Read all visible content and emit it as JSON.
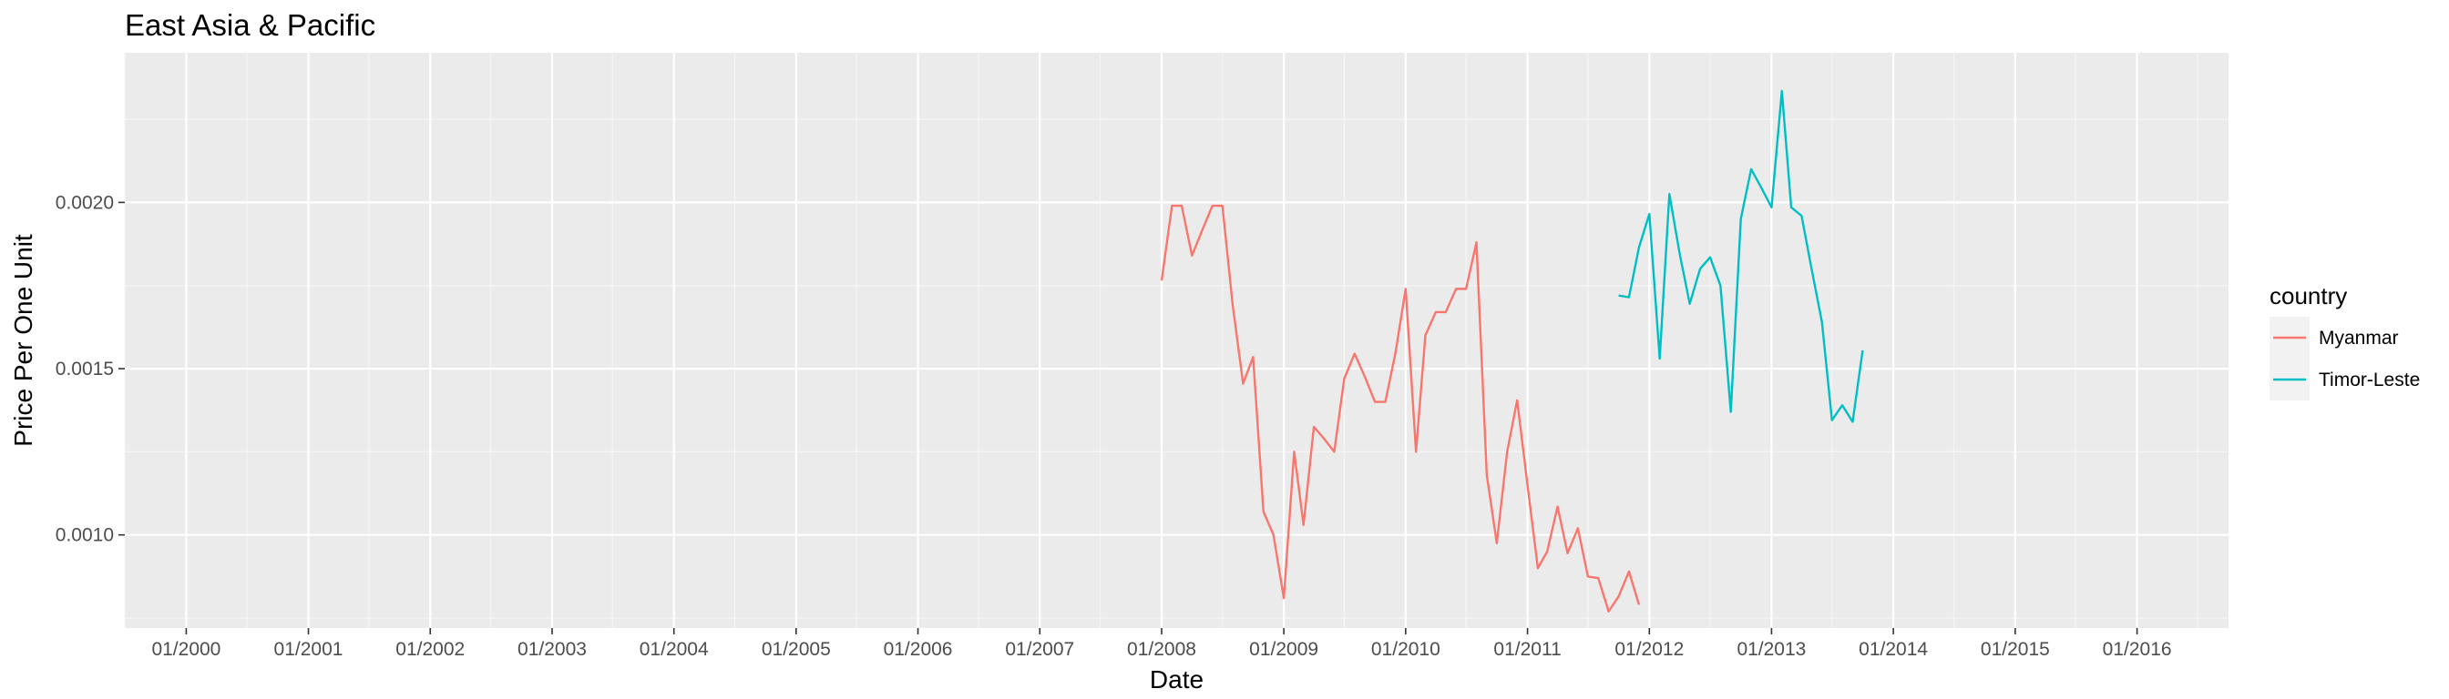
{
  "chart_data": {
    "type": "line",
    "title": "East Asia & Pacific",
    "xlabel": "Date",
    "ylabel": "Price Per One Unit",
    "x_tick_labels": [
      "01/2000",
      "01/2001",
      "01/2002",
      "01/2003",
      "01/2004",
      "01/2005",
      "01/2006",
      "01/2007",
      "01/2008",
      "01/2009",
      "01/2010",
      "01/2011",
      "01/2012",
      "01/2013",
      "01/2014",
      "01/2015",
      "01/2016"
    ],
    "y_ticks": [
      0.001,
      0.0015,
      0.002
    ],
    "y_tick_labels": [
      "0.0010",
      "0.0015",
      "0.0020"
    ],
    "xlim": [
      "1999-07-01",
      "2016-10-01"
    ],
    "ylim": [
      0.00072,
      0.00245
    ],
    "grid": true,
    "legend": {
      "title": "country",
      "position": "right"
    },
    "series": [
      {
        "name": "Myanmar",
        "color": "#F8766D",
        "points": [
          [
            "2008-01-01",
            0.001765
          ],
          [
            "2008-02-01",
            0.00199
          ],
          [
            "2008-03-01",
            0.00199
          ],
          [
            "2008-04-01",
            0.00184
          ],
          [
            "2008-05-01",
            0.001915
          ],
          [
            "2008-06-01",
            0.00199
          ],
          [
            "2008-07-01",
            0.00199
          ],
          [
            "2008-08-01",
            0.00169
          ],
          [
            "2008-09-01",
            0.001455
          ],
          [
            "2008-10-01",
            0.001535
          ],
          [
            "2008-11-01",
            0.00107
          ],
          [
            "2008-12-01",
            0.001
          ],
          [
            "2009-01-01",
            0.00081
          ],
          [
            "2009-02-01",
            0.00125
          ],
          [
            "2009-03-01",
            0.00103
          ],
          [
            "2009-04-01",
            0.001325
          ],
          [
            "2009-05-01",
            0.00129
          ],
          [
            "2009-06-01",
            0.00125
          ],
          [
            "2009-07-01",
            0.00147
          ],
          [
            "2009-08-01",
            0.001545
          ],
          [
            "2009-09-01",
            0.001475
          ],
          [
            "2009-10-01",
            0.0014
          ],
          [
            "2009-11-01",
            0.0014
          ],
          [
            "2009-12-01",
            0.001545
          ],
          [
            "2010-01-01",
            0.00174
          ],
          [
            "2010-02-01",
            0.00125
          ],
          [
            "2010-03-01",
            0.0016
          ],
          [
            "2010-04-01",
            0.00167
          ],
          [
            "2010-05-01",
            0.00167
          ],
          [
            "2010-06-01",
            0.00174
          ],
          [
            "2010-07-01",
            0.00174
          ],
          [
            "2010-08-01",
            0.00188
          ],
          [
            "2010-09-01",
            0.00118
          ],
          [
            "2010-10-01",
            0.000975
          ],
          [
            "2010-11-01",
            0.00125
          ],
          [
            "2010-12-01",
            0.001405
          ],
          [
            "2011-01-01",
            0.00115
          ],
          [
            "2011-02-01",
            0.0009
          ],
          [
            "2011-03-01",
            0.00095
          ],
          [
            "2011-04-01",
            0.001085
          ],
          [
            "2011-05-01",
            0.000945
          ],
          [
            "2011-06-01",
            0.00102
          ],
          [
            "2011-07-01",
            0.000875
          ],
          [
            "2011-08-01",
            0.00087
          ],
          [
            "2011-09-01",
            0.00077
          ],
          [
            "2011-10-01",
            0.000815
          ],
          [
            "2011-11-01",
            0.00089
          ],
          [
            "2011-12-01",
            0.00079
          ]
        ]
      },
      {
        "name": "Timor-Leste",
        "color": "#00BFC4",
        "points": [
          [
            "2011-10-01",
            0.00172
          ],
          [
            "2011-11-01",
            0.001715
          ],
          [
            "2011-12-01",
            0.001865
          ],
          [
            "2012-01-01",
            0.001965
          ],
          [
            "2012-02-01",
            0.00153
          ],
          [
            "2012-03-01",
            0.002025
          ],
          [
            "2012-04-01",
            0.001845
          ],
          [
            "2012-05-01",
            0.001695
          ],
          [
            "2012-06-01",
            0.0018
          ],
          [
            "2012-07-01",
            0.001835
          ],
          [
            "2012-08-01",
            0.00175
          ],
          [
            "2012-09-01",
            0.00137
          ],
          [
            "2012-10-01",
            0.00195
          ],
          [
            "2012-11-01",
            0.0021
          ],
          [
            "2012-12-01",
            0.002045
          ],
          [
            "2013-01-01",
            0.001985
          ],
          [
            "2013-02-01",
            0.002335
          ],
          [
            "2013-03-01",
            0.001985
          ],
          [
            "2013-04-01",
            0.00196
          ],
          [
            "2013-05-01",
            0.0018
          ],
          [
            "2013-06-01",
            0.00164
          ],
          [
            "2013-07-01",
            0.001345
          ],
          [
            "2013-08-01",
            0.00139
          ],
          [
            "2013-09-01",
            0.00134
          ],
          [
            "2013-10-01",
            0.001555
          ]
        ]
      }
    ]
  }
}
